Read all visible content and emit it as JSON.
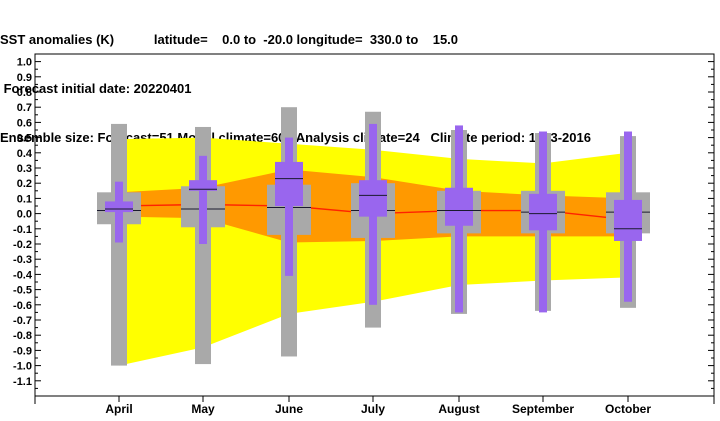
{
  "header": {
    "line1": "SST anomalies (K)           latitude=    0.0 to  -20.0 longitude=  330.0 to    15.0",
    "line2": " Forecast initial date: 20220401",
    "line3": "Ensemble size: Forecast=51 Model climate=600 Analysis climate=24   Climate period: 1993-2016"
  },
  "chart_data": {
    "type": "box",
    "categories": [
      "April",
      "May",
      "June",
      "July",
      "August",
      "September",
      "October"
    ],
    "ylim": [
      -1.2,
      1.05
    ],
    "yticks": [
      "1.0",
      "0.9",
      "0.8",
      "0.7",
      "0.6",
      "0.5",
      "0.4",
      "0.3",
      "0.2",
      "0.1",
      "0.0",
      "-0.1",
      "-0.2",
      "-0.3",
      "-0.4",
      "-0.5",
      "-0.6",
      "-0.7",
      "-0.8",
      "-0.9",
      "-1.0",
      "-1.1"
    ],
    "yticks_values": [
      1.0,
      0.9,
      0.8,
      0.7,
      0.6,
      0.5,
      0.4,
      0.3,
      0.2,
      0.1,
      0.0,
      -0.1,
      -0.2,
      -0.3,
      -0.4,
      -0.5,
      -0.6,
      -0.7,
      -0.8,
      -0.9,
      -1.0,
      -1.1
    ],
    "model_climate_envelope": {
      "outer_upper": [
        0.49,
        0.5,
        0.46,
        0.42,
        0.36,
        0.33,
        0.4
      ],
      "outer_lower": [
        -1.0,
        -0.88,
        -0.66,
        -0.58,
        -0.47,
        -0.44,
        -0.42
      ],
      "inner_upper": [
        0.14,
        0.17,
        0.29,
        0.24,
        0.15,
        0.12,
        0.1
      ],
      "inner_lower": [
        -0.02,
        -0.03,
        -0.19,
        -0.18,
        -0.15,
        -0.15,
        -0.15
      ],
      "median": [
        0.05,
        0.06,
        0.05,
        0.0,
        0.02,
        0.02,
        -0.04
      ]
    },
    "analysis_climate_boxes": {
      "whisker_min": [
        -1.0,
        -0.99,
        -0.94,
        -0.75,
        -0.66,
        -0.64,
        -0.62
      ],
      "whisker_max": [
        0.59,
        0.57,
        0.7,
        0.67,
        0.55,
        0.53,
        0.51
      ],
      "q1": [
        -0.07,
        -0.09,
        -0.14,
        -0.16,
        -0.13,
        -0.13,
        -0.13
      ],
      "q3": [
        0.14,
        0.18,
        0.19,
        0.2,
        0.15,
        0.15,
        0.14
      ],
      "median": [
        0.02,
        0.03,
        0.04,
        0.02,
        0.02,
        0.01,
        0.01
      ]
    },
    "forecast_boxes": {
      "whisker_min": [
        -0.19,
        -0.2,
        -0.41,
        -0.6,
        -0.65,
        -0.65,
        -0.58
      ],
      "whisker_max": [
        0.21,
        0.38,
        0.5,
        0.59,
        0.58,
        0.54,
        0.54
      ],
      "q1": [
        0.01,
        0.15,
        0.05,
        -0.02,
        -0.08,
        -0.11,
        -0.18
      ],
      "q3": [
        0.08,
        0.22,
        0.34,
        0.22,
        0.17,
        0.13,
        0.09
      ],
      "median": [
        0.03,
        0.16,
        0.23,
        0.12,
        0.02,
        0.0,
        -0.1
      ]
    },
    "colors": {
      "outer_envelope": "#ffff00",
      "inner_envelope": "#ff9900",
      "median_line": "#ff2200",
      "analysis_box": "#a9a9a9",
      "forecast_box": "#9966ee",
      "median_mark": "#1a1a2e",
      "axis": "#000000"
    }
  }
}
